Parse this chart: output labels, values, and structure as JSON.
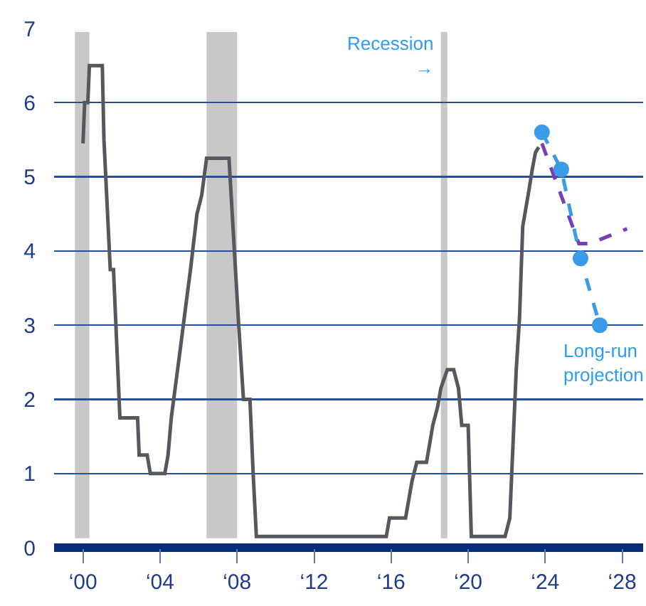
{
  "chart_data": {
    "type": "line",
    "xlim": [
      "1998-07",
      "2029-02"
    ],
    "ylim": [
      0,
      7
    ],
    "xticks": [
      {
        "value": "2000",
        "label": "‘00"
      },
      {
        "value": "2004",
        "label": "‘04"
      },
      {
        "value": "2008",
        "label": "‘08"
      },
      {
        "value": "2012",
        "label": "‘12"
      },
      {
        "value": "2016",
        "label": "‘16"
      },
      {
        "value": "2020",
        "label": "‘20"
      },
      {
        "value": "2024",
        "label": "‘24"
      },
      {
        "value": "2028",
        "label": "‘28"
      }
    ],
    "yticks": [
      0,
      1,
      2,
      3,
      4,
      5,
      6,
      7
    ],
    "grid": "y",
    "marker": "none",
    "line_style": "solid",
    "series": [
      {
        "color": "#55595d",
        "x": [
          "2000-01",
          "2000-02",
          "2000-04",
          "2000-05",
          "2001-01",
          "2001-02",
          "2001-06",
          "2001-08",
          "2001-12",
          "2002-11",
          "2002-12",
          "2003-05",
          "2003-07",
          "2004-04",
          "2004-06",
          "2004-08",
          "2004-11",
          "2005-02",
          "2005-05",
          "2005-08",
          "2005-12",
          "2006-03",
          "2006-06",
          "2007-08",
          "2007-10",
          "2008-02",
          "2008-05",
          "2008-09",
          "2008-11",
          "2009-01",
          "2015-10",
          "2015-12",
          "2016-10",
          "2016-12",
          "2017-02",
          "2017-05",
          "2017-11",
          "2018-01",
          "2018-03",
          "2018-06",
          "2018-08",
          "2018-12",
          "2019-04",
          "2019-07",
          "2019-09",
          "2020-01",
          "2020-03",
          "2021-12",
          "2022-03",
          "2022-07",
          "2022-09",
          "2022-11",
          "2023-03",
          "2023-05",
          "2023-07",
          "2023-09"
        ],
        "values": [
          5.45,
          6.0,
          6.0,
          6.5,
          6.5,
          5.5,
          3.75,
          3.75,
          1.75,
          1.75,
          1.25,
          1.25,
          1.0,
          1.0,
          1.25,
          1.75,
          2.25,
          2.75,
          3.25,
          3.75,
          4.5,
          4.75,
          5.25,
          5.25,
          4.5,
          3.0,
          2.0,
          2.0,
          1.0,
          0.15,
          0.15,
          0.4,
          0.4,
          0.65,
          0.9,
          1.15,
          1.15,
          1.4,
          1.65,
          1.9,
          2.15,
          2.4,
          2.4,
          2.15,
          1.65,
          1.65,
          0.15,
          0.15,
          0.4,
          2.4,
          3.1,
          4.33,
          4.83,
          5.1,
          5.33,
          5.4
        ]
      },
      {
        "color": "#7b3fb5",
        "line_style": "dashed",
        "x": [
          "2023-11",
          "2025-10",
          "2026-05",
          "2028-04"
        ],
        "values": [
          5.45,
          4.1,
          4.1,
          4.3
        ]
      },
      {
        "color": "#3a9be8",
        "line_style": "dashed",
        "marker": "circle",
        "x": [
          "2023-11",
          "2024-11",
          "2025-11",
          "2026-11"
        ],
        "values": [
          5.6,
          5.1,
          3.9,
          3.0
        ]
      }
    ],
    "bands": [
      {
        "axis": "x",
        "from": "1999-08",
        "to": "2000-05",
        "color": "#c8c8c8"
      },
      {
        "axis": "x",
        "from": "2006-06",
        "to": "2008-01",
        "color": "#c8c8c8"
      },
      {
        "axis": "x",
        "from": "2018-08",
        "to": "2018-12",
        "color": "#c8c8c8"
      }
    ],
    "annotations": [
      {
        "text": "Recession\n→",
        "x": "2018-08",
        "y": 6.3
      },
      {
        "text": "Long-run\nprojection",
        "x": "2026-11",
        "y": 3.0
      }
    ]
  }
}
